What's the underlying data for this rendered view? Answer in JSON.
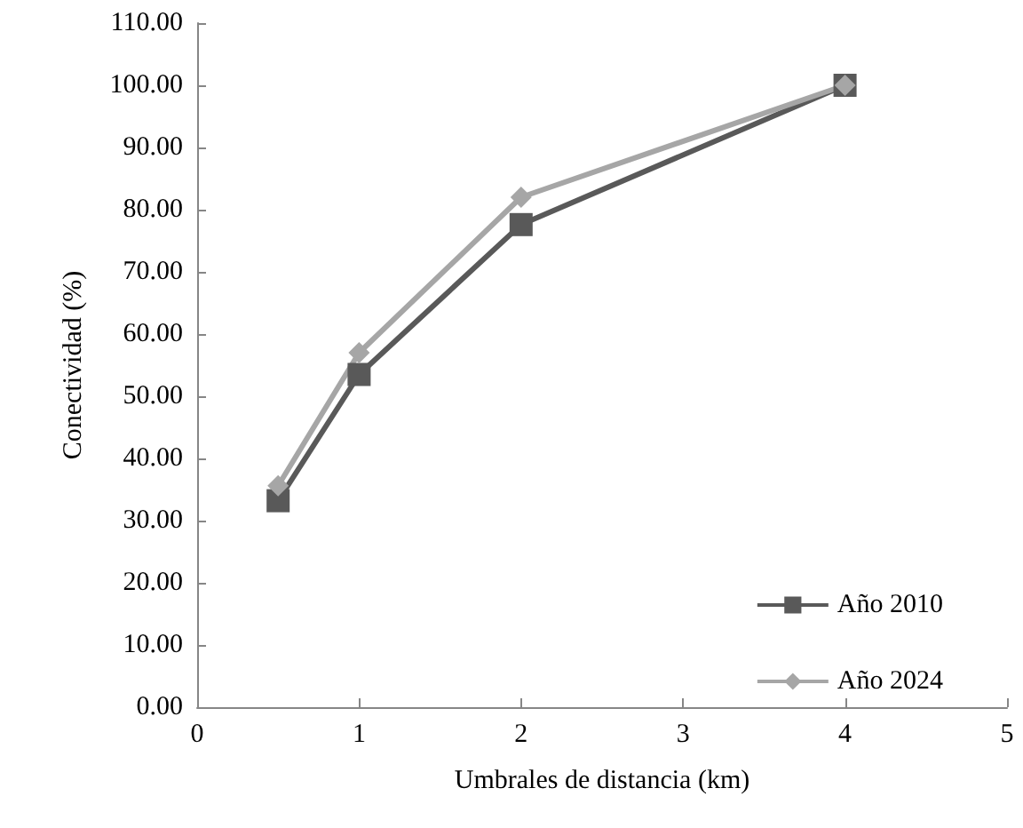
{
  "chart_data": {
    "type": "line",
    "xlabel": "Umbrales de distancia (km)",
    "ylabel": "Conectividad (%)",
    "xlim": [
      0,
      5
    ],
    "xticks": [
      0,
      1,
      2,
      3,
      4,
      5
    ],
    "ylim": [
      0,
      110
    ],
    "yticks": [
      {
        "value": 0,
        "label": "0.00"
      },
      {
        "value": 10,
        "label": "10.00"
      },
      {
        "value": 20,
        "label": "20.00"
      },
      {
        "value": 30,
        "label": "30.00"
      },
      {
        "value": 40,
        "label": "40.00"
      },
      {
        "value": 50,
        "label": "50.00"
      },
      {
        "value": 60,
        "label": "60.00"
      },
      {
        "value": 70,
        "label": "70.00"
      },
      {
        "value": 80,
        "label": "80.00"
      },
      {
        "value": 90,
        "label": "90.00"
      },
      {
        "value": 100,
        "label": "100.00"
      },
      {
        "value": 110,
        "label": "110.00"
      }
    ],
    "x": [
      0.5,
      1,
      2,
      4
    ],
    "grid": false,
    "legend": "bottom right",
    "line_style": "solid",
    "series": [
      {
        "name": "Año 2010",
        "color": "#595959",
        "marker": "square",
        "values": [
          33.2,
          53.5,
          77.6,
          100
        ]
      },
      {
        "name": "Año 2024",
        "color": "#a6a6a6",
        "marker": "diamond",
        "values": [
          35.6,
          57.0,
          82.0,
          100
        ]
      }
    ]
  }
}
